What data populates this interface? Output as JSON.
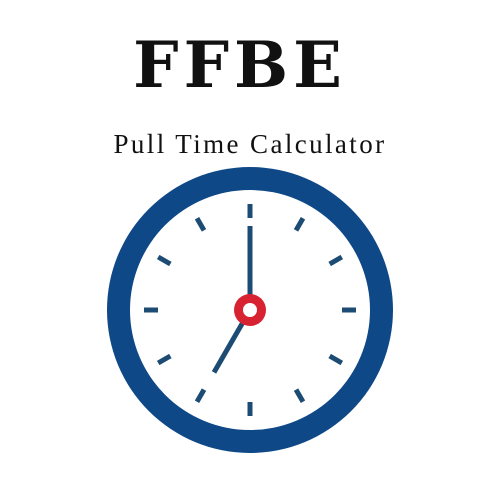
{
  "header": {
    "title": "FFBE",
    "subtitle": "Pull Time Calculator"
  },
  "clock": {
    "icon": "clock-icon",
    "hour": 7,
    "minute": 0,
    "ring_color": "#0e4887",
    "face_color": "#ffffff",
    "hand_color": "#1c4b74",
    "marker_color": "#1c4b74",
    "center_color": "#d72331"
  }
}
